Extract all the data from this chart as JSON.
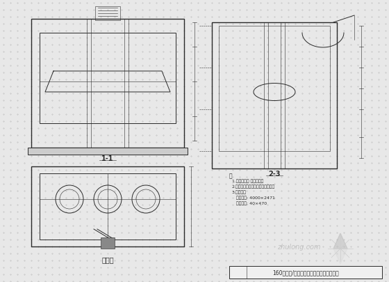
{
  "bg_color": "#e8e8e8",
  "line_color": "#2a2a2a",
  "title_text": "160立方米/时重力式无阀滤池布置图（一）",
  "watermark": "zhulong.com",
  "notes_title": "注",
  "notes": [
    "1.未标注尺寸 单位毫米。",
    "2.未注明的设备管件均为铸铁管件。",
    "3.地下建筑",
    "   模板尺寸: 4000×2471",
    "   模板减小: 40×470"
  ],
  "front_view_label": "1-1",
  "side_view_label": "2-3",
  "plan_view_label": "平面图"
}
